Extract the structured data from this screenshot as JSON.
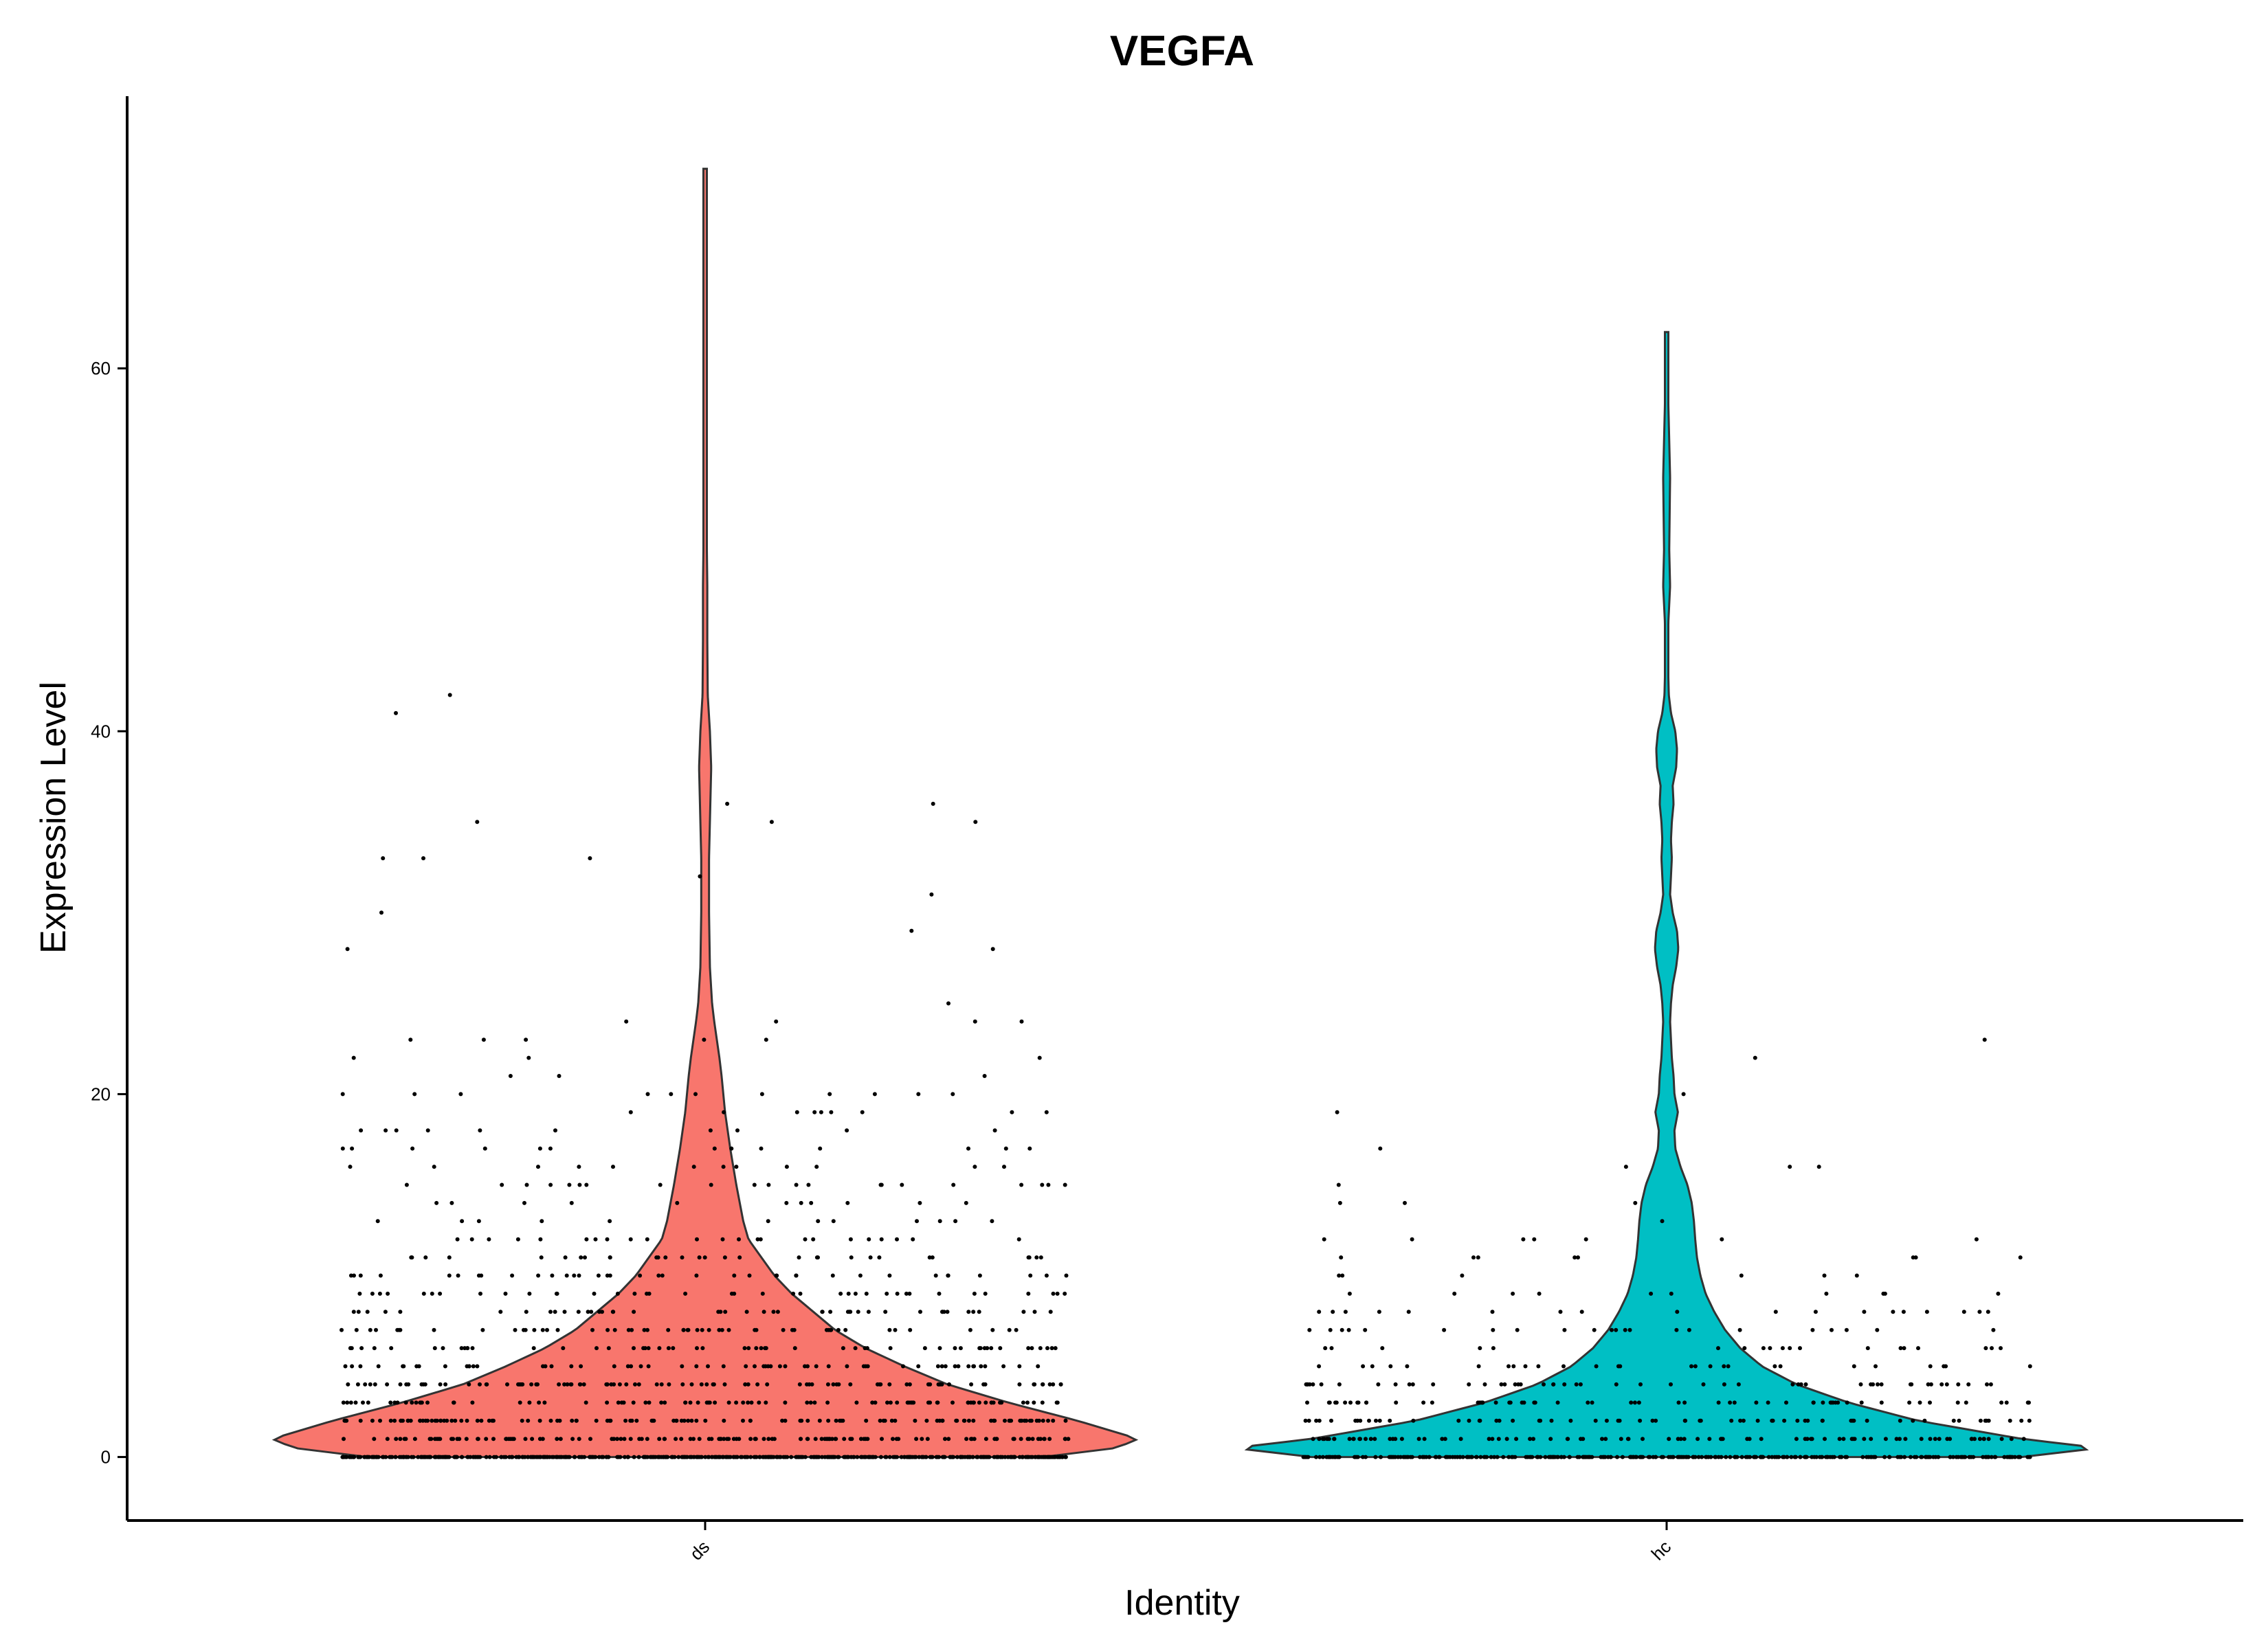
{
  "chart_data": {
    "type": "violin",
    "title": "VEGFA",
    "xlabel": "Identity",
    "ylabel": "Expression Level",
    "ylim": [
      -3.5,
      75
    ],
    "yticks": [
      "0",
      "20",
      "40",
      "60"
    ],
    "grid": false,
    "legend": "none",
    "categories": [
      "ds",
      "hc"
    ],
    "series": [
      {
        "name": "ds",
        "color": "#F8766D",
        "max": 71,
        "density_profile": [
          [
            0,
            0.78
          ],
          [
            0.5,
            0.95
          ],
          [
            1,
            1.0
          ],
          [
            2,
            0.86
          ],
          [
            3,
            0.7
          ],
          [
            4,
            0.56
          ],
          [
            5,
            0.46
          ],
          [
            6,
            0.37
          ],
          [
            7,
            0.3
          ],
          [
            8,
            0.25
          ],
          [
            9,
            0.2
          ],
          [
            10,
            0.16
          ],
          [
            11,
            0.13
          ],
          [
            12,
            0.1
          ],
          [
            13,
            0.088
          ],
          [
            14,
            0.08
          ],
          [
            15,
            0.072
          ],
          [
            16,
            0.065
          ],
          [
            17,
            0.058
          ],
          [
            18,
            0.052
          ],
          [
            19,
            0.046
          ],
          [
            20,
            0.042
          ],
          [
            21,
            0.038
          ],
          [
            22,
            0.033
          ],
          [
            23,
            0.027
          ],
          [
            24,
            0.021
          ],
          [
            25,
            0.016
          ],
          [
            27,
            0.011
          ],
          [
            30,
            0.009
          ],
          [
            33,
            0.009
          ],
          [
            36,
            0.012
          ],
          [
            38,
            0.014
          ],
          [
            40,
            0.011
          ],
          [
            42,
            0.006
          ],
          [
            45,
            0.005
          ],
          [
            48,
            0.005
          ],
          [
            50,
            0.004
          ],
          [
            55,
            0.003
          ],
          [
            60,
            0.003
          ],
          [
            65,
            0.003
          ],
          [
            68,
            0.004
          ],
          [
            70,
            0.004
          ],
          [
            71,
            0.003
          ]
        ]
      },
      {
        "name": "hc",
        "color": "#00BFC4",
        "max": 62,
        "density_profile": [
          [
            0,
            0.82
          ],
          [
            0.5,
            1.0
          ],
          [
            1,
            0.82
          ],
          [
            2,
            0.58
          ],
          [
            3,
            0.42
          ],
          [
            4,
            0.3
          ],
          [
            5,
            0.22
          ],
          [
            6,
            0.17
          ],
          [
            7,
            0.135
          ],
          [
            8,
            0.11
          ],
          [
            9,
            0.09
          ],
          [
            10,
            0.078
          ],
          [
            11,
            0.07
          ],
          [
            12,
            0.066
          ],
          [
            13,
            0.063
          ],
          [
            14,
            0.058
          ],
          [
            15,
            0.048
          ],
          [
            16,
            0.032
          ],
          [
            17,
            0.02
          ],
          [
            18,
            0.018
          ],
          [
            19,
            0.026
          ],
          [
            20,
            0.018
          ],
          [
            21,
            0.016
          ],
          [
            22,
            0.012
          ],
          [
            23,
            0.01
          ],
          [
            24,
            0.008
          ],
          [
            25,
            0.01
          ],
          [
            26,
            0.014
          ],
          [
            27,
            0.022
          ],
          [
            28,
            0.027
          ],
          [
            29,
            0.024
          ],
          [
            30,
            0.014
          ],
          [
            31,
            0.008
          ],
          [
            32,
            0.01
          ],
          [
            33,
            0.012
          ],
          [
            34,
            0.01
          ],
          [
            35,
            0.012
          ],
          [
            36,
            0.016
          ],
          [
            37,
            0.014
          ],
          [
            38,
            0.022
          ],
          [
            39,
            0.024
          ],
          [
            40,
            0.02
          ],
          [
            41,
            0.01
          ],
          [
            42,
            0.005
          ],
          [
            44,
            0.003
          ],
          [
            46,
            0.004
          ],
          [
            48,
            0.008
          ],
          [
            50,
            0.006
          ],
          [
            52,
            0.007
          ],
          [
            54,
            0.008
          ],
          [
            56,
            0.006
          ],
          [
            58,
            0.004
          ],
          [
            60,
            0.004
          ],
          [
            62,
            0.004
          ]
        ]
      }
    ]
  }
}
